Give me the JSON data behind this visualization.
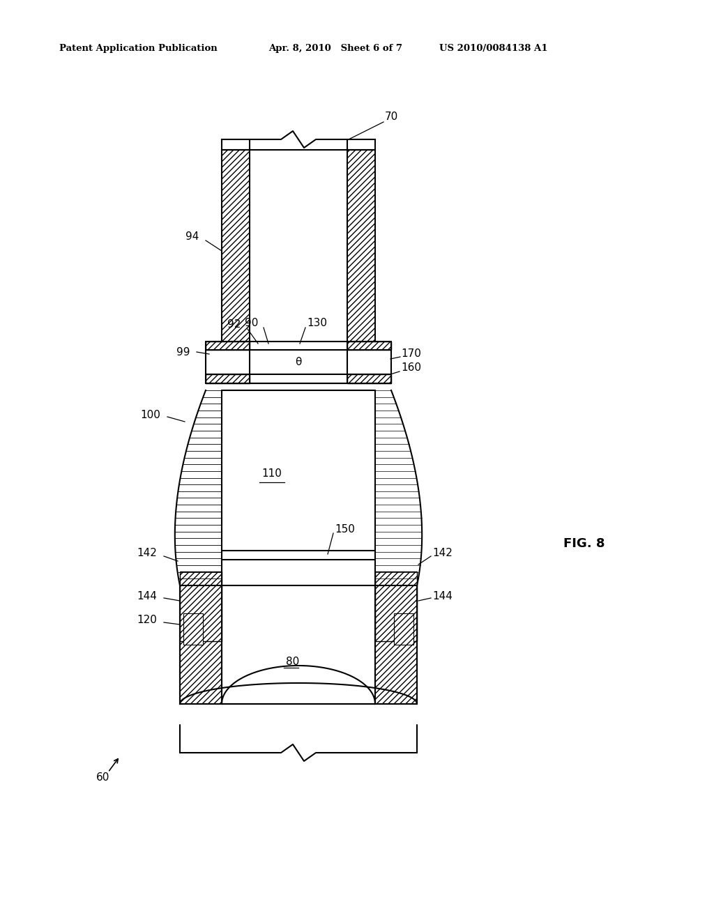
{
  "bg_color": "#ffffff",
  "lc": "#000000",
  "header_left": "Patent Application Publication",
  "header_mid": "Apr. 8, 2010   Sheet 6 of 7",
  "header_right": "US 2010/0084138 A1",
  "fig_label": "FIG. 8"
}
